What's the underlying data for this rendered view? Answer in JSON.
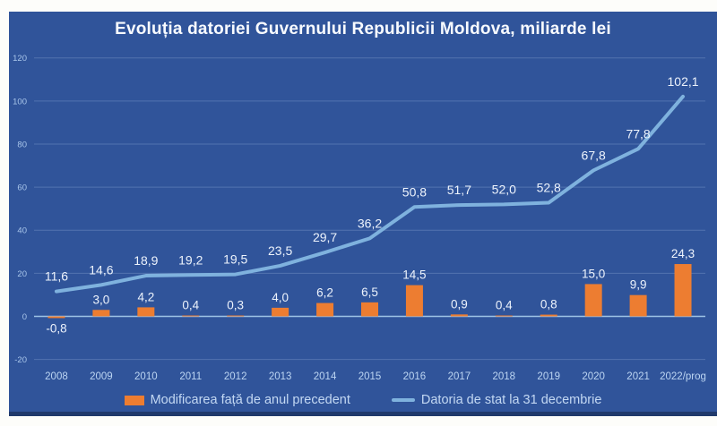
{
  "chart": {
    "title": "Evoluția datoriei Guvernului Republicii Moldova, miliarde lei",
    "bg_color": "#30549A",
    "bottom_border_color": "#20396B",
    "grid_color": "rgba(185,208,242,0.25)",
    "zero_line_color": "#9DC3E6",
    "y_tick_color": "#A9C6EA",
    "x_label_color": "#BCD5F2",
    "data_label_color": "#EDF3FC",
    "title_color": "#F8FBFF"
  },
  "legend": {
    "bar_label": "Modificarea față de anul precedent",
    "line_label": "Datoria de stat la 31 decembrie"
  },
  "chart_data": {
    "type": "bar+line combo",
    "title": "Evoluția datoriei Guvernului Republicii Moldova, miliarde lei",
    "categories": [
      "2008",
      "2009",
      "2010",
      "2011",
      "2012",
      "2013",
      "2014",
      "2015",
      "2016",
      "2017",
      "2018",
      "2019",
      "2020",
      "2021",
      "2022/prog"
    ],
    "series": [
      {
        "name": "Modificarea față de anul precedent",
        "type": "bar",
        "color": "#ED7D31",
        "values": [
          -0.8,
          3.0,
          4.2,
          0.4,
          0.3,
          4.0,
          6.2,
          6.5,
          14.5,
          0.9,
          0.4,
          0.8,
          15.0,
          9.9,
          24.3
        ],
        "labels": [
          "-0,8",
          "3,0",
          "4,2",
          "0,4",
          "0,3",
          "4,0",
          "6,2",
          "6,5",
          "14,5",
          "0,9",
          "0,4",
          "0,8",
          "15,0",
          "9,9",
          "24,3"
        ]
      },
      {
        "name": "Datoria de stat la 31 decembrie",
        "type": "line",
        "color": "#7FB2DE",
        "values": [
          11.6,
          14.6,
          18.9,
          19.2,
          19.5,
          23.5,
          29.7,
          36.2,
          50.8,
          51.7,
          52.0,
          52.8,
          67.8,
          77.8,
          102.1
        ],
        "labels": [
          "11,6",
          "14,6",
          "18,9",
          "19,2",
          "19,5",
          "23,5",
          "29,7",
          "36,2",
          "50,8",
          "51,7",
          "52,0",
          "52,8",
          "67,8",
          "77,8",
          "102,1"
        ]
      }
    ],
    "y_axis": {
      "min": -20,
      "max": 120,
      "step": 20,
      "ticks": [
        120,
        100,
        80,
        60,
        40,
        20,
        0,
        -20
      ],
      "tick_labels": [
        "120",
        "100",
        "80",
        "60",
        "40",
        "20",
        "0",
        "-20"
      ]
    },
    "grid": true,
    "legend_position": "bottom"
  }
}
